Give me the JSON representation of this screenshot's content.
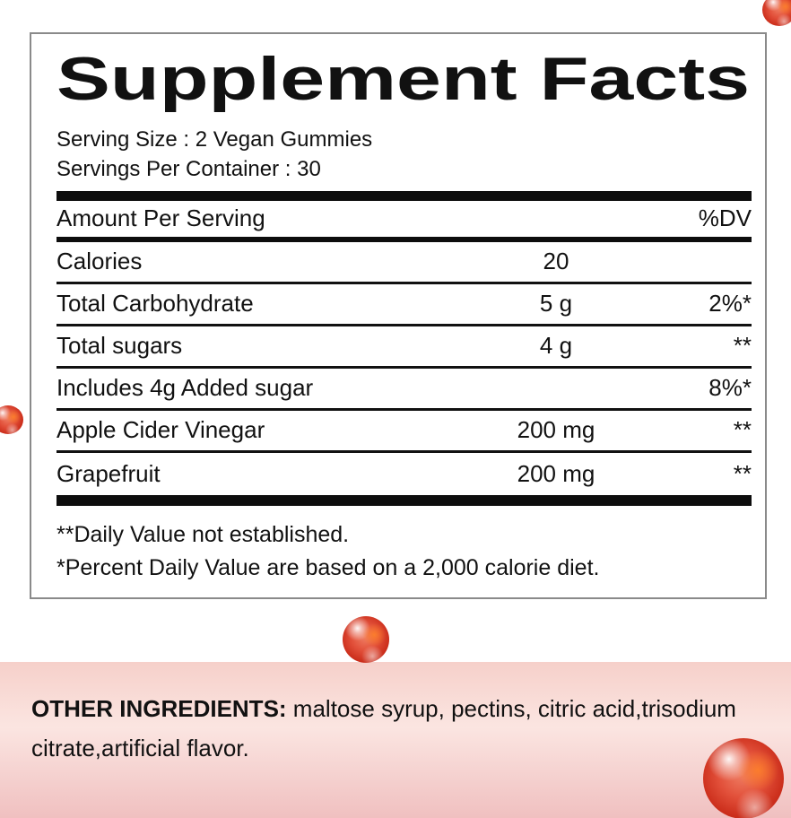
{
  "label": {
    "title": "Supplement Facts",
    "serving_size": "Serving Size : 2 Vegan Gummies",
    "servings_per_container": "Servings Per Container : 30",
    "header": {
      "amount_per_serving": "Amount Per Serving",
      "dv": "%DV"
    },
    "rows": [
      {
        "name": "Calories",
        "amount": "20",
        "dv": ""
      },
      {
        "name": "Total Carbohydrate",
        "amount": "5 g",
        "dv": "2%*"
      },
      {
        "name": "Total sugars",
        "amount": "4 g",
        "dv": "**"
      },
      {
        "name": "Includes 4g Added sugar",
        "amount": "",
        "dv": "8%*"
      },
      {
        "name": "Apple Cider Vinegar",
        "amount": "200 mg",
        "dv": "**"
      },
      {
        "name": "Grapefruit",
        "amount": "200 mg",
        "dv": "**"
      }
    ],
    "footnotes": [
      "**Daily Value not established.",
      "*Percent Daily Value are based on a 2,000 calorie diet."
    ]
  },
  "other_ingredients": {
    "label": "OTHER INGREDIENTS:",
    "text": "  maltose syrup, pectins, citric acid,trisodium citrate,artificial flavor."
  },
  "decor": {
    "gummy_color": "#d93b26",
    "pink_gradient": [
      "#f6d0ca",
      "#fbe5e1",
      "#f0c0c0"
    ],
    "panel_border_color": "#8a8a8a",
    "gummy_positions": [
      "top-right",
      "left-middle",
      "center-above-band",
      "bottom-right"
    ]
  }
}
